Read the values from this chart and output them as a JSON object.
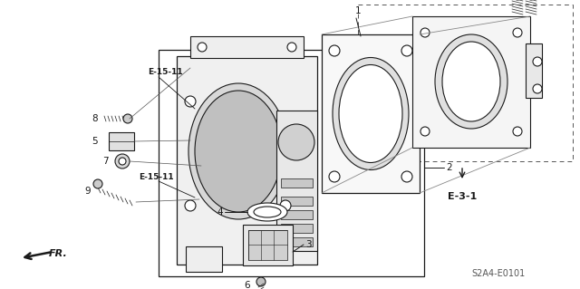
{
  "bg_color": "#ffffff",
  "line_color": "#1a1a1a",
  "gray": "#777777",
  "dark_gray": "#444444",
  "light_gray": "#cccccc",
  "fig_width": 6.4,
  "fig_height": 3.19,
  "diagram_code": "S2A4-E0101",
  "ref_label": "E-3-1",
  "fr_label": "FR."
}
